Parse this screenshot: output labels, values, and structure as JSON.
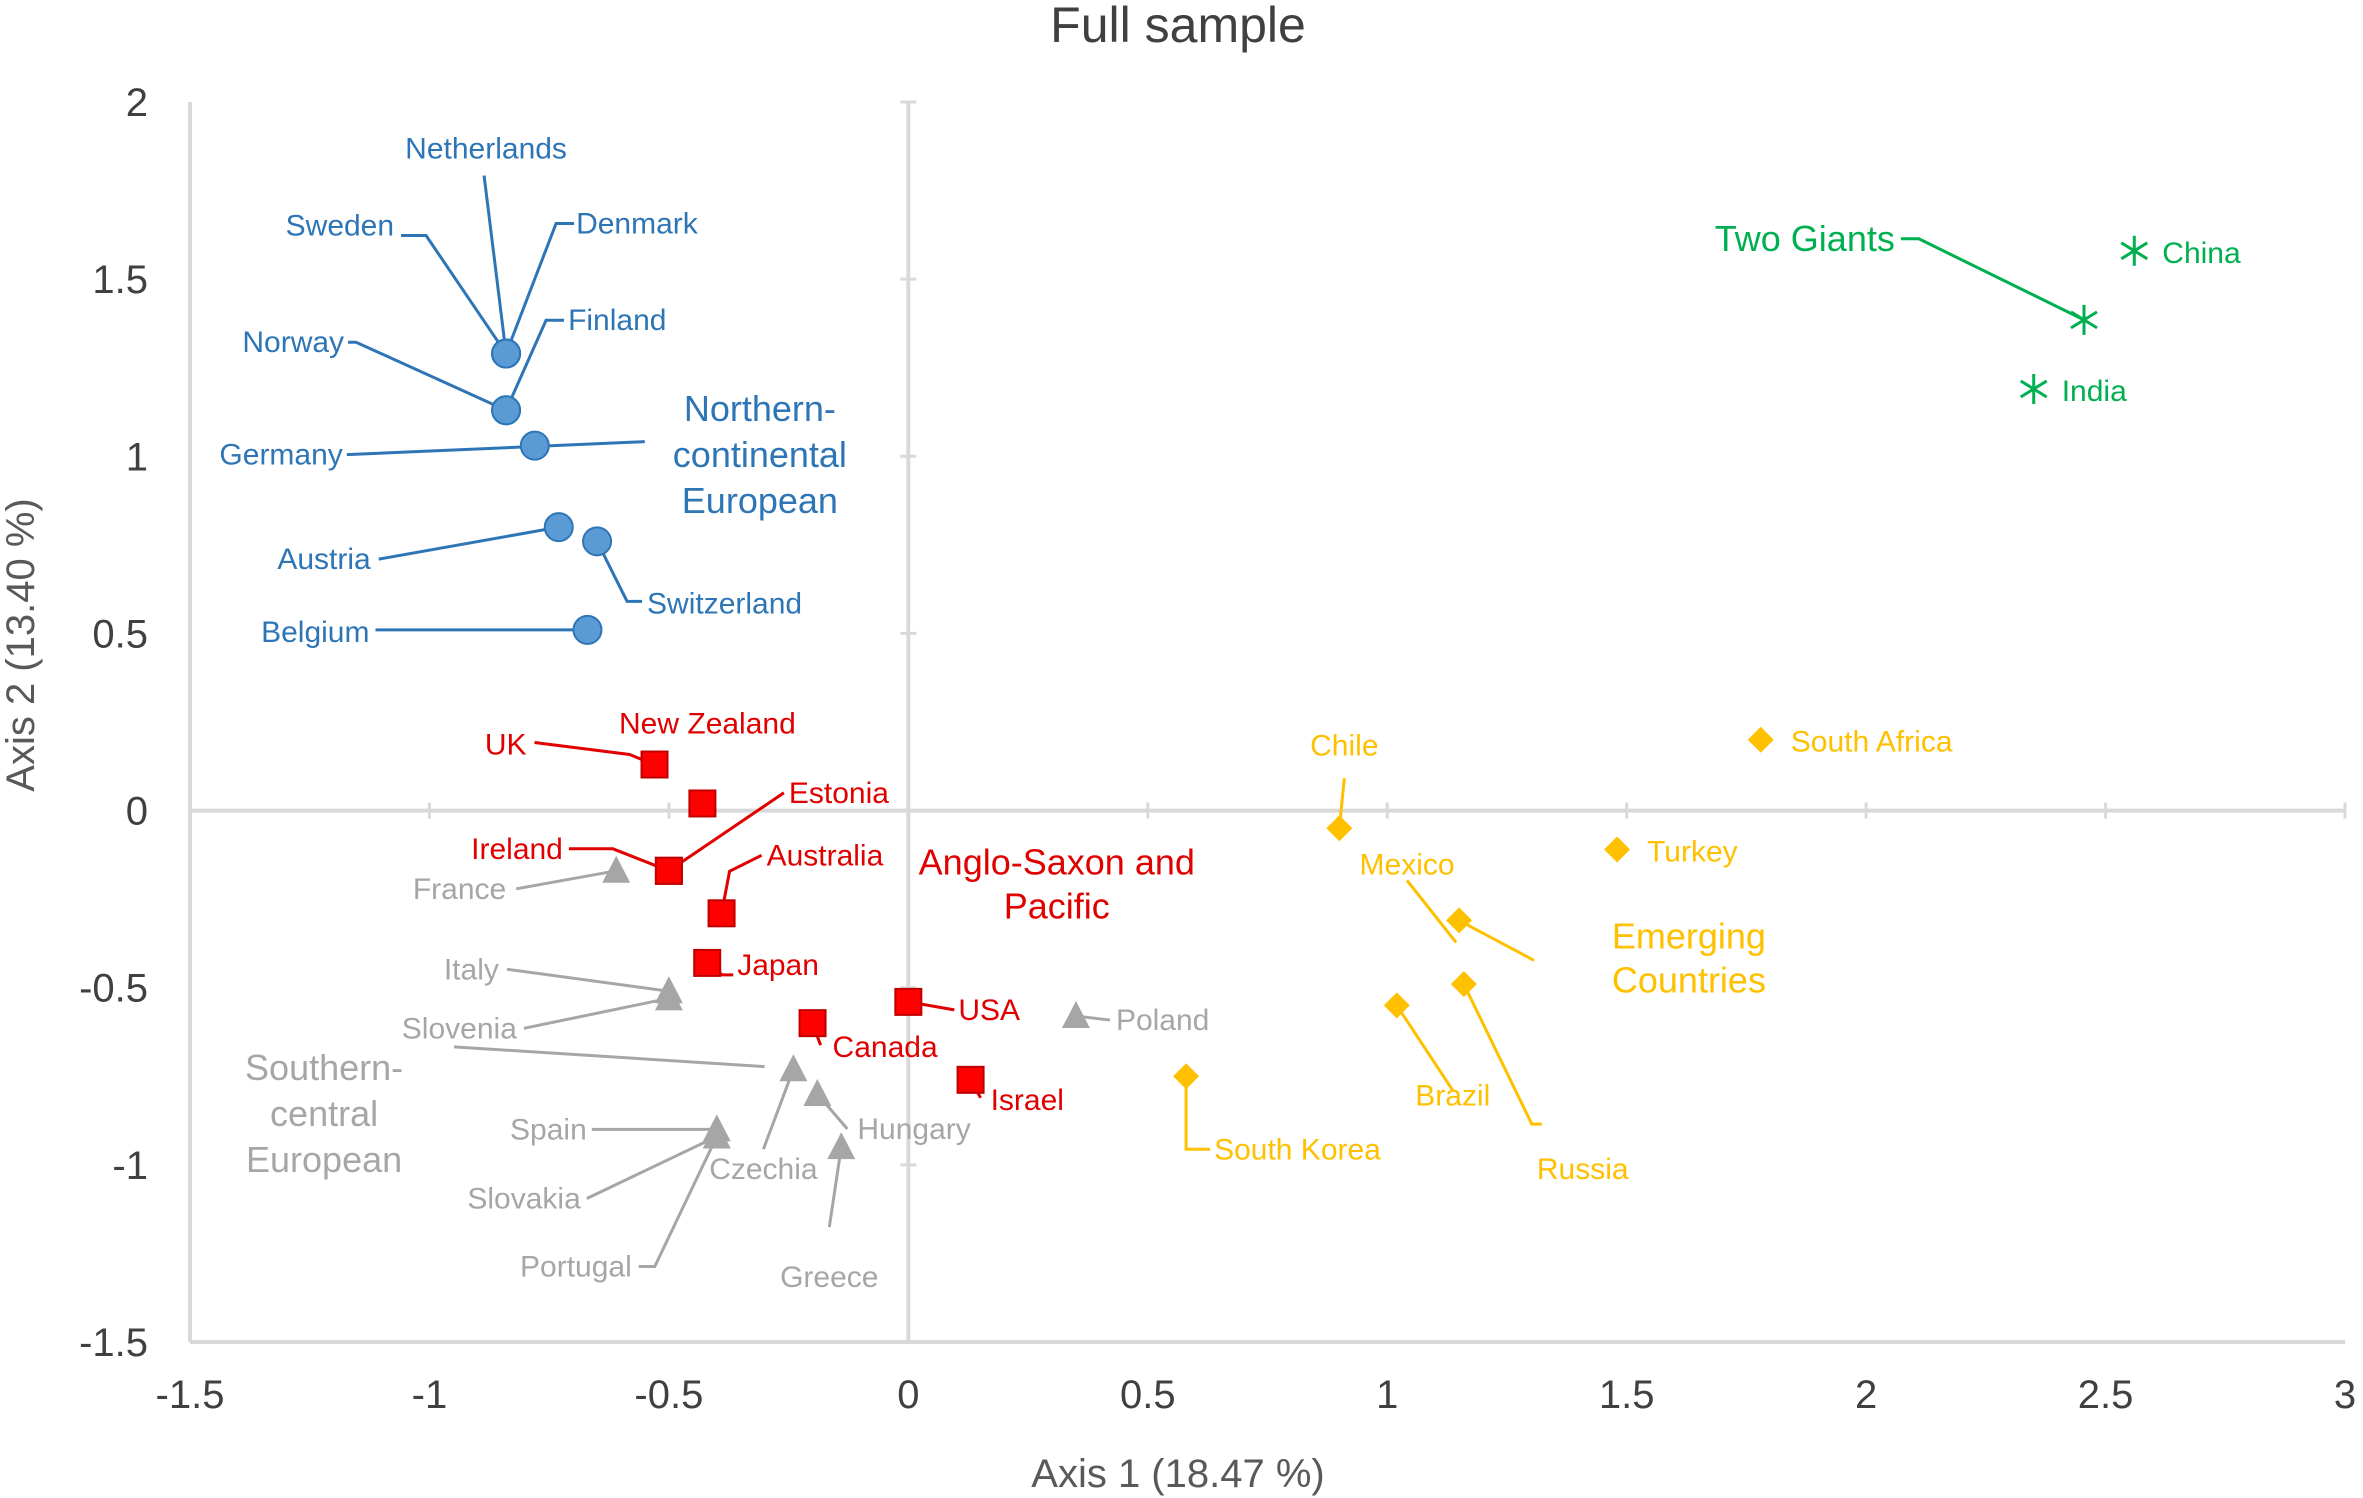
{
  "chart_data": {
    "type": "scatter",
    "title": "Full sample",
    "xlabel": "Axis 1 (18.47 %)",
    "ylabel": "Axis 2 (13.40 %)",
    "xlim": [
      -1.5,
      3
    ],
    "ylim": [
      -1.5,
      2
    ],
    "x_ticks": [
      "-1.5",
      "-1",
      "-0.5",
      "0",
      "0.5",
      "1",
      "1.5",
      "2",
      "2.5",
      "3"
    ],
    "y_ticks": [
      "2",
      "1.5",
      "1",
      "0.5",
      "0",
      "-0.5",
      "-1",
      "-1.5"
    ],
    "grid": false,
    "legend": "none",
    "series": [
      {
        "name": "Northern-continental European",
        "color": "#2E75B6",
        "fill": "#5B9BD5",
        "marker": "circle",
        "points": [
          {
            "label": "Netherlands",
            "x": -0.84,
            "y": 1.29
          },
          {
            "label": "Denmark",
            "x": -0.84,
            "y": 1.29
          },
          {
            "label": "Sweden",
            "x": -0.84,
            "y": 1.29
          },
          {
            "label": "Finland",
            "x": -0.84,
            "y": 1.13
          },
          {
            "label": "Norway",
            "x": -0.84,
            "y": 1.13
          },
          {
            "label": "Germany",
            "x": -0.78,
            "y": 1.03
          },
          {
            "label": "Austria",
            "x": -0.73,
            "y": 0.8
          },
          {
            "label": "Switzerland",
            "x": -0.65,
            "y": 0.76
          },
          {
            "label": "Belgium",
            "x": -0.67,
            "y": 0.51
          }
        ]
      },
      {
        "name": "Anglo-Saxon and Pacific",
        "color": "#E00000",
        "fill": "#FF0000",
        "marker": "square",
        "points": [
          {
            "label": "UK",
            "x": -0.53,
            "y": 0.13
          },
          {
            "label": "New Zealand",
            "x": -0.43,
            "y": 0.02
          },
          {
            "label": "Estonia",
            "x": -0.5,
            "y": -0.17
          },
          {
            "label": "Ireland",
            "x": -0.5,
            "y": -0.17
          },
          {
            "label": "Australia",
            "x": -0.39,
            "y": -0.29
          },
          {
            "label": "Japan",
            "x": -0.42,
            "y": -0.43
          },
          {
            "label": "USA",
            "x": 0.0,
            "y": -0.54
          },
          {
            "label": "Canada",
            "x": -0.2,
            "y": -0.6
          },
          {
            "label": "Israel",
            "x": 0.13,
            "y": -0.76
          }
        ]
      },
      {
        "name": "Southern-central European",
        "color": "#A6A6A6",
        "fill": "#A6A6A6",
        "marker": "triangle",
        "points": [
          {
            "label": "France",
            "x": -0.61,
            "y": -0.17
          },
          {
            "label": "Italy",
            "x": -0.5,
            "y": -0.51
          },
          {
            "label": "Slovenia",
            "x": -0.5,
            "y": -0.53
          },
          {
            "label": "Poland",
            "x": 0.35,
            "y": -0.58
          },
          {
            "label": "Czechia",
            "x": -0.24,
            "y": -0.73
          },
          {
            "label": "Hungary",
            "x": -0.19,
            "y": -0.8
          },
          {
            "label": "Spain",
            "x": -0.4,
            "y": -0.9
          },
          {
            "label": "Slovakia",
            "x": -0.4,
            "y": -0.92
          },
          {
            "label": "Portugal",
            "x": -0.4,
            "y": -0.92
          },
          {
            "label": "Greece",
            "x": -0.14,
            "y": -0.95
          }
        ]
      },
      {
        "name": "Emerging Countries",
        "color": "#FFC000",
        "fill": "#FFC000",
        "marker": "diamond",
        "points": [
          {
            "label": "South Africa",
            "x": 1.78,
            "y": 0.2
          },
          {
            "label": "Chile",
            "x": 0.9,
            "y": -0.05
          },
          {
            "label": "Turkey",
            "x": 1.48,
            "y": -0.11
          },
          {
            "label": "Mexico",
            "x": 1.15,
            "y": -0.31
          },
          {
            "label": "Russia",
            "x": 1.16,
            "y": -0.49
          },
          {
            "label": "Brazil",
            "x": 1.02,
            "y": -0.55
          },
          {
            "label": "South Korea",
            "x": 0.58,
            "y": -0.75
          }
        ]
      },
      {
        "name": "Two Giants",
        "color": "#00B050",
        "fill": "#00B050",
        "marker": "star",
        "points": [
          {
            "label": "China",
            "x": 2.56,
            "y": 1.58
          },
          {
            "label": "India",
            "x": 2.35,
            "y": 1.19
          }
        ]
      }
    ],
    "group_labels": [
      {
        "text": [
          "Northern-",
          "continental",
          "European"
        ],
        "color": "#2E75B6"
      },
      {
        "text": [
          "Anglo-Saxon and",
          "Pacific"
        ],
        "color": "#E00000"
      },
      {
        "text": [
          "Southern-",
          "central",
          "European"
        ],
        "color": "#A6A6A6"
      },
      {
        "text": [
          "Emerging",
          "Countries"
        ],
        "color": "#FFC000"
      },
      {
        "text": [
          "Two Giants"
        ],
        "color": "#00B050"
      }
    ]
  }
}
